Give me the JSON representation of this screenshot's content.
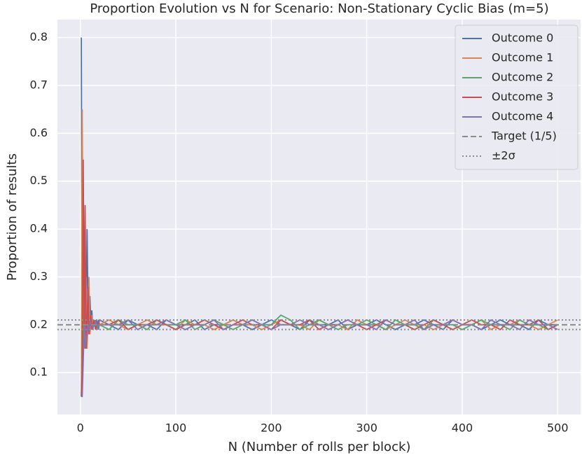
{
  "chart_data": {
    "type": "line",
    "title": "Proportion Evolution vs N for Scenario: Non-Stationary Cyclic Bias (m=5)",
    "xlabel": "N (Number of rolls per block)",
    "ylabel": "Proportion of results",
    "x": [
      1,
      2,
      3,
      4,
      5,
      6,
      7,
      8,
      9,
      10,
      11,
      12,
      13,
      14,
      15,
      16,
      17,
      18,
      19,
      20,
      30,
      40,
      50,
      60,
      70,
      80,
      90,
      100,
      110,
      120,
      130,
      140,
      150,
      160,
      170,
      180,
      190,
      200,
      210,
      220,
      230,
      240,
      250,
      260,
      270,
      280,
      290,
      300,
      310,
      320,
      330,
      340,
      350,
      360,
      370,
      380,
      390,
      400,
      410,
      420,
      430,
      440,
      450,
      460,
      470,
      480,
      490,
      500
    ],
    "series": [
      {
        "name": "Outcome 0",
        "color": "#4c72b0",
        "values": [
          0.8,
          0.1,
          0.15,
          0.2,
          0.3,
          0.2,
          0.4,
          0.25,
          0.22,
          0.26,
          0.21,
          0.23,
          0.2,
          0.21,
          0.2,
          0.19,
          0.21,
          0.2,
          0.2,
          0.21,
          0.2,
          0.19,
          0.21,
          0.2,
          0.2,
          0.19,
          0.21,
          0.2,
          0.2,
          0.21,
          0.19,
          0.2,
          0.2,
          0.21,
          0.2,
          0.19,
          0.2,
          0.21,
          0.2,
          0.2,
          0.19,
          0.21,
          0.2,
          0.2,
          0.21,
          0.19,
          0.2,
          0.2,
          0.21,
          0.2,
          0.19,
          0.2,
          0.2,
          0.21,
          0.2,
          0.19,
          0.21,
          0.2,
          0.2,
          0.19,
          0.2,
          0.21,
          0.2,
          0.2,
          0.19,
          0.21,
          0.2,
          0.2
        ]
      },
      {
        "name": "Outcome 1",
        "color": "#dd8452",
        "values": [
          0.05,
          0.65,
          0.2,
          0.15,
          0.2,
          0.3,
          0.15,
          0.2,
          0.3,
          0.18,
          0.2,
          0.22,
          0.19,
          0.2,
          0.21,
          0.2,
          0.19,
          0.2,
          0.21,
          0.2,
          0.21,
          0.2,
          0.19,
          0.2,
          0.21,
          0.2,
          0.2,
          0.19,
          0.21,
          0.2,
          0.2,
          0.19,
          0.2,
          0.21,
          0.2,
          0.2,
          0.19,
          0.2,
          0.21,
          0.2,
          0.2,
          0.19,
          0.21,
          0.2,
          0.2,
          0.19,
          0.21,
          0.2,
          0.2,
          0.19,
          0.2,
          0.21,
          0.2,
          0.2,
          0.19,
          0.2,
          0.21,
          0.2,
          0.2,
          0.21,
          0.19,
          0.2,
          0.2,
          0.21,
          0.2,
          0.19,
          0.2,
          0.21
        ]
      },
      {
        "name": "Outcome 2",
        "color": "#55a868",
        "values": [
          0.05,
          0.1,
          0.15,
          0.25,
          0.2,
          0.18,
          0.22,
          0.19,
          0.2,
          0.21,
          0.2,
          0.19,
          0.2,
          0.2,
          0.21,
          0.2,
          0.2,
          0.19,
          0.2,
          0.2,
          0.19,
          0.21,
          0.2,
          0.2,
          0.19,
          0.21,
          0.2,
          0.2,
          0.21,
          0.19,
          0.2,
          0.21,
          0.2,
          0.19,
          0.2,
          0.21,
          0.2,
          0.2,
          0.22,
          0.21,
          0.19,
          0.2,
          0.21,
          0.2,
          0.19,
          0.2,
          0.2,
          0.21,
          0.2,
          0.19,
          0.21,
          0.2,
          0.2,
          0.19,
          0.21,
          0.2,
          0.2,
          0.19,
          0.2,
          0.21,
          0.2,
          0.2,
          0.19,
          0.21,
          0.2,
          0.2,
          0.19,
          0.2
        ]
      },
      {
        "name": "Outcome 3",
        "color": "#c44e52",
        "values": [
          0.05,
          0.1,
          0.545,
          0.2,
          0.45,
          0.15,
          0.2,
          0.28,
          0.18,
          0.2,
          0.22,
          0.19,
          0.2,
          0.21,
          0.2,
          0.19,
          0.2,
          0.2,
          0.21,
          0.2,
          0.2,
          0.21,
          0.19,
          0.2,
          0.2,
          0.21,
          0.2,
          0.19,
          0.2,
          0.2,
          0.21,
          0.2,
          0.19,
          0.2,
          0.21,
          0.2,
          0.2,
          0.19,
          0.21,
          0.2,
          0.2,
          0.21,
          0.19,
          0.2,
          0.2,
          0.21,
          0.2,
          0.19,
          0.2,
          0.21,
          0.2,
          0.2,
          0.19,
          0.2,
          0.21,
          0.2,
          0.19,
          0.2,
          0.21,
          0.2,
          0.2,
          0.19,
          0.21,
          0.2,
          0.2,
          0.21,
          0.19,
          0.2
        ]
      },
      {
        "name": "Outcome 4",
        "color": "#8172b3",
        "values": [
          0.05,
          0.05,
          0.12,
          0.2,
          0.15,
          0.17,
          0.18,
          0.2,
          0.19,
          0.21,
          0.2,
          0.2,
          0.19,
          0.2,
          0.2,
          0.21,
          0.2,
          0.2,
          0.19,
          0.2,
          0.2,
          0.2,
          0.21,
          0.19,
          0.2,
          0.2,
          0.21,
          0.2,
          0.19,
          0.2,
          0.2,
          0.21,
          0.19,
          0.2,
          0.2,
          0.21,
          0.2,
          0.19,
          0.2,
          0.2,
          0.21,
          0.2,
          0.2,
          0.19,
          0.2,
          0.21,
          0.2,
          0.2,
          0.19,
          0.21,
          0.2,
          0.2,
          0.21,
          0.19,
          0.2,
          0.2,
          0.21,
          0.2,
          0.2,
          0.19,
          0.21,
          0.2,
          0.2,
          0.19,
          0.21,
          0.2,
          0.2,
          0.19
        ]
      }
    ],
    "reference_lines": [
      {
        "name": "Target (1/5)",
        "color": "#8c8c8c",
        "style": "dashed",
        "values": [
          0.2
        ]
      },
      {
        "name": "±2σ",
        "color": "#8c8c8c",
        "style": "dotted",
        "values": [
          0.21,
          0.19
        ]
      }
    ],
    "xlim": [
      -24,
      524
    ],
    "ylim": [
      0.0125,
      0.8375
    ],
    "xticks": [
      0,
      100,
      200,
      300,
      400,
      500
    ],
    "yticks": [
      0.1,
      0.2,
      0.3,
      0.4,
      0.5,
      0.6,
      0.7,
      0.8
    ],
    "grid": true,
    "legend": "upper right"
  }
}
